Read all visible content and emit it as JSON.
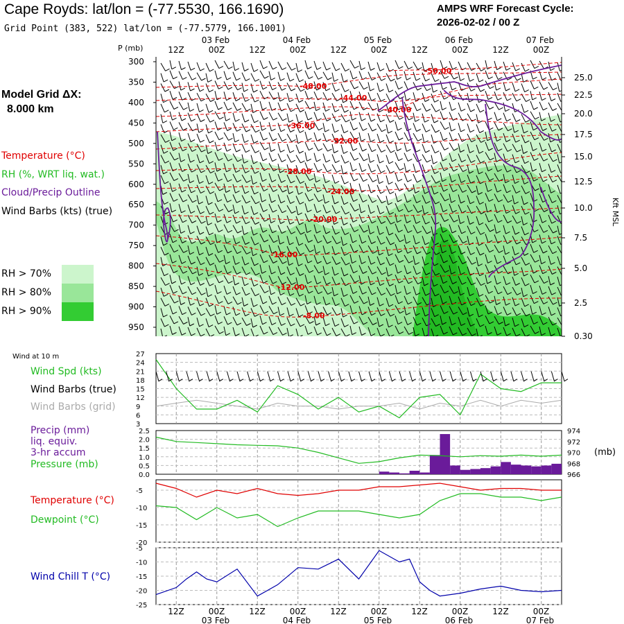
{
  "header": {
    "title": "Cape Royds:  lat/lon = (-77.5530, 166.1690)",
    "subtitle": "Grid Point (383, 522) lat/lon = (-77.5779, 166.1001)",
    "forecast_title": "AMPS WRF Forecast Cycle:",
    "forecast_cycle": "2026-02-02 / 00  Z",
    "grid_label_1": "Model Grid ΔX:",
    "grid_label_2": "8.000 km"
  },
  "colors": {
    "temperature": "#e00000",
    "green": "#22bb22",
    "purple": "#6a1b9a",
    "blue": "#0000aa",
    "gray": "#aaaaaa",
    "rh70": "#ccf5cc",
    "rh80": "#99e699",
    "rh90": "#33cc33"
  },
  "legend": {
    "temperature": "Temperature (°C)",
    "rh": "RH (%, WRT liq. wat.)",
    "cloud": "Cloud/Precip Outline",
    "wind": "Wind Barbs (kts) (true)",
    "rh70": "RH > 70%",
    "rh80": "RH > 80%",
    "rh90": "RH > 90%",
    "wind10": "Wind at 10 m",
    "wspd": "Wind Spd (kts)",
    "wbt": "Wind Barbs (true)",
    "wbg": "Wind Barbs (grid)",
    "precip1": "Precip (mm)",
    "precip2": "liq. equiv.",
    "precip3": "3-hr accum",
    "pressure": "Pressure (mb)",
    "temp2": "Temperature (°C)",
    "dewpoint": "Dewpoint (°C)",
    "windchill": "Wind Chill T (°C)"
  },
  "chart_data": [
    {
      "type": "heatmap",
      "name": "cross_section",
      "xlabel_top": [
        "12Z",
        "00Z",
        "12Z",
        "00Z",
        "12Z",
        "00Z",
        "12Z",
        "00Z",
        "12Z",
        "00Z"
      ],
      "date_labels": [
        "03 Feb",
        "04 Feb",
        "05 Feb",
        "06 Feb",
        "07 Feb"
      ],
      "ylabel": "P (mb)",
      "pressure_levels": [
        300,
        350,
        400,
        450,
        500,
        550,
        600,
        650,
        700,
        750,
        800,
        850,
        900,
        950
      ],
      "ylabel_right": "Kft MSL",
      "height_ticks": [
        "25.0",
        "22.5",
        "20.0",
        "17.5",
        "15.0",
        "12.5",
        "10.0",
        "7.5",
        "5.0",
        "2.5",
        "0.30"
      ],
      "temperature_contours": [
        {
          "label": "-50.00",
          "value": -50
        },
        {
          "label": "-48.00",
          "value": -48
        },
        {
          "label": "-44.00",
          "value": -44
        },
        {
          "label": "-40.00",
          "value": -40
        },
        {
          "label": "-36.00",
          "value": -36
        },
        {
          "label": "-32.00",
          "value": -32
        },
        {
          "label": "-28.00",
          "value": -28
        },
        {
          "label": "-24.00",
          "value": -24
        },
        {
          "label": "-20.00",
          "value": -20
        },
        {
          "label": "-16.00",
          "value": -16
        },
        {
          "label": "-12.00",
          "value": -12
        },
        {
          "label": "-8.00",
          "value": -8
        }
      ],
      "rh_thresholds": [
        "RH > 70%",
        "RH > 80%",
        "RH > 90%"
      ]
    },
    {
      "type": "line",
      "name": "wind_speed",
      "y_ticks": [
        "27",
        "24",
        "21",
        "18",
        "15",
        "12",
        "9",
        "6",
        "3"
      ],
      "ylim": [
        3,
        27
      ],
      "x_hours": [
        0,
        6,
        12,
        18,
        24,
        30,
        36,
        42,
        48,
        54,
        60,
        66,
        72,
        78,
        84,
        90,
        96,
        102,
        108,
        114,
        120
      ],
      "series": [
        {
          "name": "Wind Spd (kts)",
          "values": [
            25,
            15,
            8,
            8,
            11,
            7,
            16,
            13,
            8,
            12,
            7,
            9,
            5,
            12,
            13,
            6,
            20,
            15,
            14,
            17,
            17
          ]
        }
      ],
      "gray_series": [
        9,
        10,
        11,
        10,
        9,
        8,
        10,
        9,
        9,
        8,
        9,
        9,
        10,
        8,
        10,
        9,
        11,
        9,
        11,
        10,
        11
      ]
    },
    {
      "type": "bar",
      "name": "precip_pressure",
      "y_ticks_left": [
        "2.5",
        "2.0",
        "1.5",
        "1.0",
        "0.5",
        "0.0"
      ],
      "y_ticks_right": [
        "974",
        "972",
        "970",
        "968",
        "966"
      ],
      "unit_right": "(mb)",
      "precip_x_hours": [
        66,
        69,
        72,
        75,
        78,
        81,
        84,
        87,
        90,
        93,
        96,
        99,
        102,
        105,
        108,
        111,
        114,
        117
      ],
      "precip_values": [
        0.15,
        0.1,
        0.05,
        0.2,
        0.1,
        1.1,
        2.3,
        0.5,
        0.25,
        0.3,
        0.35,
        0.45,
        0.7,
        0.55,
        0.5,
        0.45,
        0.5,
        0.6
      ],
      "pressure_x_hours": [
        0,
        6,
        12,
        18,
        24,
        30,
        36,
        42,
        48,
        54,
        60,
        66,
        72,
        78,
        84,
        90,
        96,
        102,
        108,
        114,
        120
      ],
      "pressure_values": [
        972.8,
        972.0,
        971.8,
        971.6,
        971.4,
        971.3,
        971.2,
        970.8,
        970.0,
        969.0,
        968.0,
        968.3,
        969.0,
        969.5,
        969.4,
        969.2,
        969.4,
        969.3,
        969.5,
        969.3,
        969.5
      ]
    },
    {
      "type": "line",
      "name": "temp_dewpoint",
      "y_ticks": [
        "-5",
        "-10",
        "-15",
        "-20"
      ],
      "ylim": [
        -20,
        -2
      ],
      "x_hours": [
        0,
        6,
        12,
        18,
        24,
        30,
        36,
        42,
        48,
        54,
        60,
        66,
        72,
        78,
        84,
        90,
        96,
        102,
        108,
        114,
        120
      ],
      "series": [
        {
          "name": "Temperature (°C)",
          "values": [
            -3,
            -4.5,
            -7,
            -5,
            -6,
            -4.5,
            -6,
            -6.5,
            -6,
            -5,
            -5,
            -4,
            -4,
            -3.5,
            -3,
            -4,
            -5,
            -4.5,
            -4.5,
            -5,
            -5
          ]
        },
        {
          "name": "Dewpoint (°C)",
          "values": [
            -9.5,
            -10,
            -13.5,
            -10,
            -13,
            -12,
            -15.5,
            -13,
            -11,
            -11,
            -11,
            -12,
            -13,
            -12,
            -8,
            -6,
            -6,
            -7,
            -7,
            -8,
            -7
          ]
        }
      ]
    },
    {
      "type": "line",
      "name": "wind_chill",
      "y_ticks": [
        "-5",
        "-10",
        "-15",
        "-20",
        "-25"
      ],
      "ylim": [
        -25,
        -5
      ],
      "x_hours": [
        0,
        6,
        9,
        12,
        15,
        18,
        24,
        30,
        36,
        42,
        48,
        54,
        60,
        66,
        72,
        75,
        78,
        81,
        84,
        90,
        96,
        102,
        108,
        114,
        120
      ],
      "series": [
        {
          "name": "Wind Chill T (°C)",
          "values": [
            -21.5,
            -19,
            -16,
            -13.5,
            -16,
            -17,
            -12.5,
            -22,
            -18,
            -12,
            -12.5,
            -9,
            -16,
            -6,
            -10,
            -9,
            -17,
            -20,
            -22,
            -21,
            -19.5,
            -18.5,
            -20,
            -20.5,
            -20
          ]
        }
      ]
    }
  ]
}
